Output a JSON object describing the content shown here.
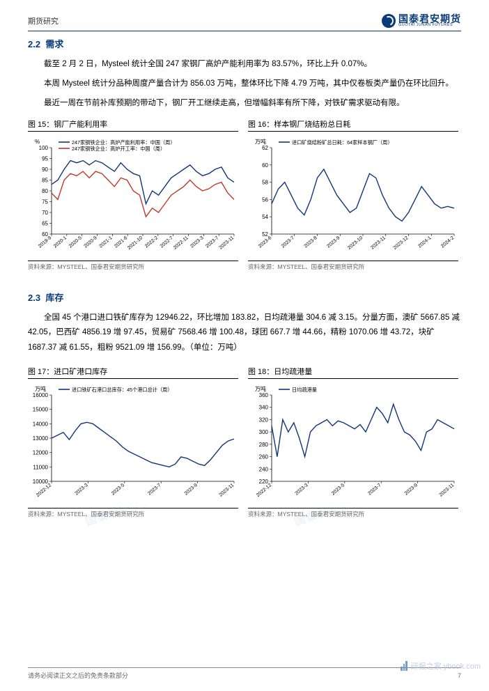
{
  "header": {
    "left": "期货研究"
  },
  "logo": {
    "cn": "国泰君安期货",
    "en": "GUOTAI JUNAN FUTURES"
  },
  "section22": {
    "num": "2.2",
    "title": "需求",
    "p1": "截至 2 月 2 日，Mysteel 统计全国 247 家钢厂高炉产能利用率为 83.57%，环比上升 0.07%。",
    "p2": "本周 Mysteel 统计分品种周度产量合计为 856.03 万吨，整体环比下降 4.79 万吨，其中仅卷板类产量仍在环比回升。",
    "p3": "最近一周在节前补库预期的带动下，钢厂开工继续走高，但增幅斜率有所下降，对铁矿需求驱动有限。"
  },
  "section23": {
    "num": "2.3",
    "title": "库存",
    "p1": "全国 45 个港口进口铁矿库存为 12946.22，环比增加 183.82，日均疏港量 304.6 减 3.15。分量方面，澳矿 5667.85 减 42.05，巴西矿 4856.19 增 97.45，贸易矿 7568.46 增 100.48，球团 667.7 增 44.66，精粉 1070.06 增 43.72，块矿 1687.37 减 61.55，粗粉 9521.09 增 156.99。（单位：万吨）"
  },
  "chart15": {
    "title": "图 15：钢厂产能利用率",
    "source": "资料来源：MYSTEEL、国泰君安期货研究所",
    "ylabel": "%",
    "ylim": [
      60,
      100
    ],
    "ytick_step": 5,
    "legend": [
      {
        "label": "247家钢铁企业：高炉产能利用率：中国（周）",
        "color": "#12357a"
      },
      {
        "label": "247家钢铁企业：高炉开工率：中国（周）",
        "color": "#c0392b"
      }
    ],
    "xticks": [
      "2019-9",
      "2020-1",
      "2020-5",
      "2020-9",
      "2021-1",
      "2021-6",
      "2021-10",
      "2022-2",
      "2022-7",
      "2022-11",
      "2023-3",
      "2023-7",
      "2023-11"
    ],
    "series1_color": "#12357a",
    "series2_color": "#c0392b",
    "series1": [
      83,
      85,
      90,
      94,
      93,
      94,
      92,
      94,
      93,
      91,
      89,
      93,
      90,
      88,
      87,
      74,
      80,
      78,
      82,
      86,
      88,
      90,
      92,
      89,
      87,
      88,
      90,
      91,
      86,
      84
    ],
    "series2": [
      79,
      76,
      85,
      88,
      87,
      89,
      86,
      89,
      88,
      85,
      82,
      86,
      85,
      80,
      78,
      68,
      72,
      70,
      74,
      78,
      80,
      82,
      85,
      82,
      80,
      81,
      83,
      84,
      79,
      76
    ]
  },
  "chart16": {
    "title": "图 16：样本钢厂烧结粉总日耗",
    "source": "资料来源：MYSTEEL、国泰君安期货研究所",
    "ylabel": "万吨",
    "ylim": [
      52,
      62
    ],
    "ytick_step": 2,
    "legend": [
      {
        "label": "进口矿烧结粉矿总日耗：64家样本钢厂（周）",
        "color": "#12357a"
      }
    ],
    "xticks": [
      "2023-6",
      "2023-7",
      "2023-8",
      "2023-9",
      "2023-10",
      "2023-11",
      "2023-12",
      "2024-1",
      "2024-2"
    ],
    "series_color": "#12357a",
    "series": [
      55.5,
      57.2,
      58.0,
      56.5,
      55.0,
      54.2,
      56.0,
      58.5,
      59.5,
      58.0,
      56.5,
      55.5,
      54.5,
      55.0,
      57.0,
      59.0,
      58.5,
      56.5,
      55.0,
      54.0,
      53.5,
      54.5,
      56.0,
      57.5,
      56.5,
      55.5,
      55.0,
      55.2,
      55.0
    ]
  },
  "chart17": {
    "title": "图 17：进口矿港口库存",
    "source": "资料来源：MYSTEEL、国泰君安期货研究所",
    "ylabel": "万吨",
    "ylim": [
      10000,
      16000
    ],
    "ytick_step": 1000,
    "legend": [
      {
        "label": "进口铁矿石港口总库存：45个港口总计（周）",
        "color": "#12357a"
      }
    ],
    "xticks": [
      "2022-12",
      "2023-3",
      "2023-5",
      "2023-7",
      "2023-9",
      "2023-11"
    ],
    "series_color": "#12357a",
    "series": [
      13000,
      13200,
      13400,
      12900,
      13500,
      14000,
      14100,
      14000,
      13700,
      13400,
      13100,
      12800,
      12400,
      12100,
      11900,
      11700,
      11500,
      11300,
      11200,
      11100,
      11000,
      11200,
      11700,
      11600,
      11400,
      11200,
      11100,
      11500,
      12000,
      12500,
      12800,
      12946
    ]
  },
  "chart18": {
    "title": "图 18：日均疏港量",
    "source": "资料来源：MYSTEEL、国泰君安期货研究所",
    "ylabel": "万吨",
    "ylim": [
      220,
      360
    ],
    "ytick_step": 20,
    "legend": [
      {
        "label": "日均疏港量",
        "color": "#12357a"
      }
    ],
    "xticks": [
      "2022-12",
      "2023-3",
      "2023-5",
      "2023-7",
      "2023-9",
      "2023-11"
    ],
    "series_color": "#12357a",
    "series": [
      310,
      260,
      320,
      300,
      315,
      290,
      260,
      300,
      310,
      315,
      320,
      310,
      318,
      315,
      310,
      305,
      312,
      300,
      320,
      340,
      330,
      315,
      345,
      320,
      300,
      295,
      285,
      270,
      300,
      305,
      320,
      315,
      310,
      305
    ]
  },
  "footer": {
    "left": "请务必阅读正文之后的免责条款部分",
    "page": "7"
  },
  "watermark_corner": "研报之家 ybook.com",
  "watermark_diag": "国泰君安期货"
}
